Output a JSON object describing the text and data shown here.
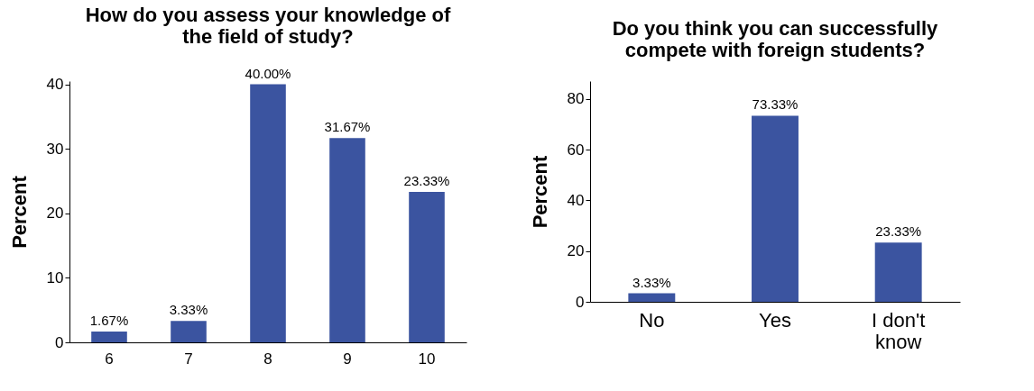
{
  "chart_data": [
    {
      "type": "bar",
      "title": "How do you assess your knowledge of\nthe field of study?",
      "ylabel": "Percent",
      "categories": [
        "6",
        "7",
        "8",
        "9",
        "10"
      ],
      "values": [
        1.67,
        3.33,
        40.0,
        31.67,
        23.33
      ],
      "value_labels": [
        "1.67%",
        "3.33%",
        "40.00%",
        "31.67%",
        "23.33%"
      ],
      "color": "#3b54a0",
      "ylim": [
        0,
        40.5
      ],
      "yticks": [
        0,
        10,
        20,
        30,
        40
      ],
      "grid": false
    },
    {
      "type": "bar",
      "title": "Do you think you can successfully\ncompete with foreign students?",
      "ylabel": "Percent",
      "categories": [
        "No",
        "Yes",
        "I don't know"
      ],
      "values": [
        3.33,
        73.33,
        23.33
      ],
      "value_labels": [
        "3.33%",
        "73.33%",
        "23.33%"
      ],
      "color": "#3b54a0",
      "ylim": [
        0,
        87
      ],
      "yticks": [
        0,
        20,
        40,
        60,
        80
      ],
      "grid": false
    }
  ]
}
